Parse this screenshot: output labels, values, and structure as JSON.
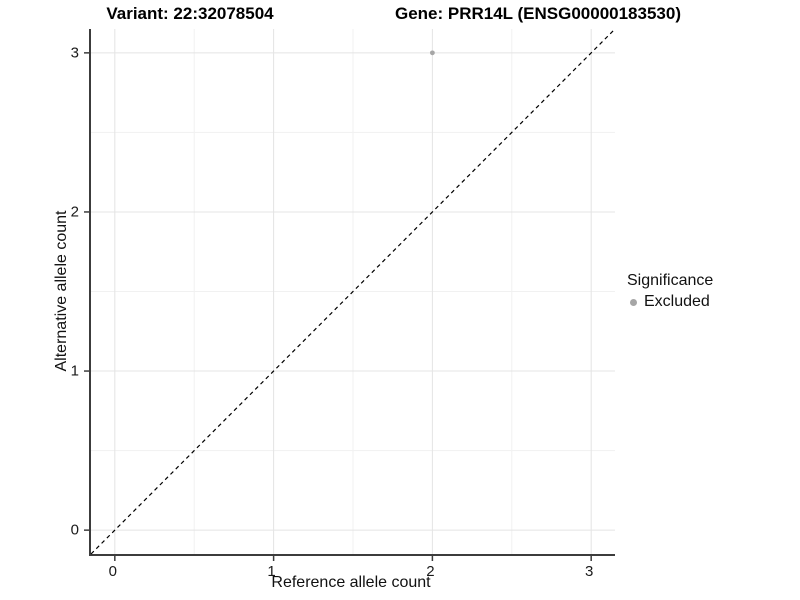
{
  "chart_data": {
    "type": "scatter",
    "titles": {
      "left": "Variant: 22:32078504",
      "right": "Gene: PRR14L (ENSG00000183530)"
    },
    "xlabel": "Reference allele count",
    "ylabel": "Alternative allele count",
    "xlim": [
      -0.15,
      3.15
    ],
    "ylim": [
      -0.15,
      3.15
    ],
    "x_ticks": [
      0,
      1,
      2,
      3
    ],
    "y_ticks": [
      0,
      1,
      2,
      3
    ],
    "x_tick_labels": [
      "0",
      "1",
      "2",
      "3"
    ],
    "y_tick_labels": [
      "0",
      "1",
      "2",
      "3"
    ],
    "x_minor_ticks": [
      0.5,
      1.5,
      2.5
    ],
    "y_minor_ticks": [
      0.5,
      1.5,
      2.5
    ],
    "grid": "major+minor",
    "series": [
      {
        "name": "Excluded",
        "color": "#a6a6a6",
        "points": [
          {
            "x": 2,
            "y": 3
          }
        ]
      }
    ],
    "reference_line": {
      "type": "abline",
      "slope": 1,
      "intercept": 0,
      "style": "dashed",
      "color": "#000000"
    },
    "legend": {
      "title": "Significance",
      "position": "right",
      "entries": [
        {
          "label": "Excluded",
          "color": "#a6a6a6"
        }
      ]
    },
    "colors": {
      "background": "#ffffff",
      "grid_major": "#e4e4e4",
      "grid_minor": "#f1f1f1",
      "axis_line": "#3c3c3c",
      "tick_mark": "#3c3c3c",
      "point": "#a6a6a6"
    }
  }
}
